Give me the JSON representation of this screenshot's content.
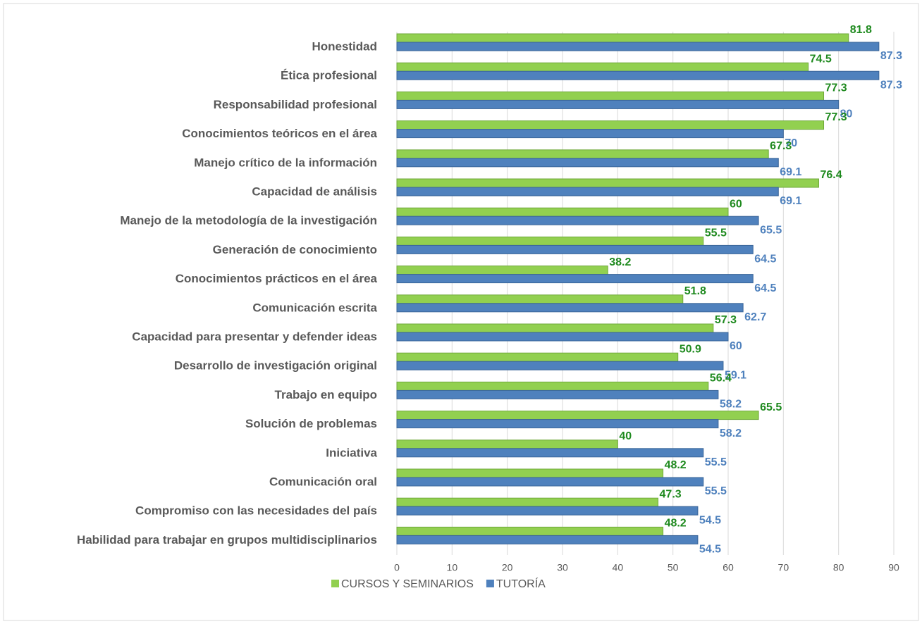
{
  "chart_data": {
    "type": "bar",
    "orientation": "horizontal",
    "categories": [
      "Honestidad",
      "Ética profesional",
      "Responsabilidad profesional",
      "Conocimientos teóricos en el área",
      "Manejo crítico de la información",
      "Capacidad de análisis",
      "Manejo de la metodología de la investigación",
      "Generación de conocimiento",
      "Conocimientos prácticos en el área",
      "Comunicación escrita",
      "Capacidad para presentar y defender ideas",
      "Desarrollo de investigación original",
      "Trabajo en equipo",
      "Solución de problemas",
      "Iniciativa",
      "Comunicación oral",
      "Compromiso con las necesidades del país",
      "Habilidad para trabajar en grupos multidisciplinarios"
    ],
    "series": [
      {
        "name": "CURSOS Y SEMINARIOS",
        "color": "#92d050",
        "label_color": "#1f8a1f",
        "values": [
          81.8,
          74.5,
          77.3,
          77.3,
          67.3,
          76.4,
          60,
          55.5,
          38.2,
          51.8,
          57.3,
          50.9,
          56.4,
          65.5,
          40,
          48.2,
          47.3,
          48.2
        ]
      },
      {
        "name": "TUTORÍA",
        "color": "#4f81bd",
        "label_color": "#4f81bd",
        "values": [
          87.3,
          87.3,
          80,
          70,
          69.1,
          69.1,
          65.5,
          64.5,
          64.5,
          62.7,
          60,
          59.1,
          58.2,
          58.2,
          55.5,
          55.5,
          54.5,
          54.5
        ]
      }
    ],
    "xlim": [
      0,
      90
    ],
    "xticks": [
      0,
      10,
      20,
      30,
      40,
      50,
      60,
      70,
      80,
      90
    ],
    "grid": true,
    "legend": "bottom"
  }
}
